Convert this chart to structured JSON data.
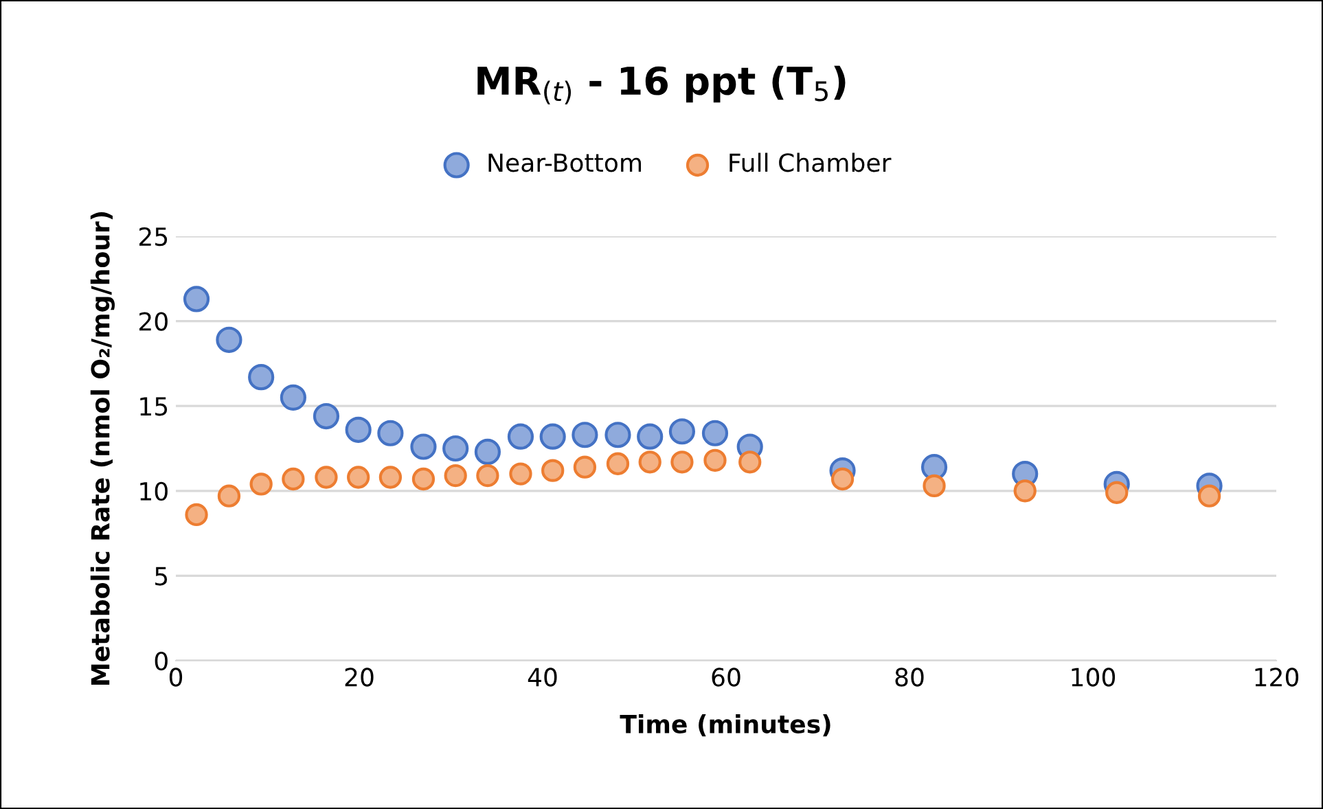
{
  "chart_data": {
    "type": "scatter",
    "title": "MR$_{(t)}$ - 16 ppt (T$_{5}$)",
    "xlabel": "Time (minutes)",
    "ylabel": "Metabolic Rate (nmol O₂/mg/hour)",
    "x": [
      2.25,
      5.8,
      9.3,
      12.8,
      16.4,
      19.9,
      23.4,
      27,
      30.5,
      34,
      37.6,
      41.1,
      44.6,
      48.2,
      51.7,
      55.2,
      58.8,
      62.6,
      72.7,
      82.7,
      92.6,
      102.6,
      112.7
    ],
    "series": [
      {
        "name": "Near-Bottom",
        "color": "#8faadc",
        "values": [
          21.3,
          18.9,
          16.7,
          15.5,
          14.4,
          13.6,
          13.4,
          12.6,
          12.5,
          12.3,
          13.2,
          13.2,
          13.3,
          13.3,
          13.2,
          13.5,
          13.4,
          12.6,
          11.2,
          11.4,
          11.0,
          10.4,
          10.3
        ]
      },
      {
        "name": "Full Chamber",
        "color": "#f4b183",
        "values": [
          8.6,
          9.7,
          10.4,
          10.7,
          10.8,
          10.8,
          10.8,
          10.7,
          10.9,
          10.9,
          11.0,
          11.2,
          11.4,
          11.6,
          11.7,
          11.7,
          11.8,
          11.7,
          10.7,
          10.3,
          10.0,
          9.9,
          9.7
        ]
      }
    ],
    "xlim": [
      0,
      120
    ],
    "xticks": [
      0,
      20,
      40,
      60,
      80,
      100,
      120
    ],
    "ylim": [
      0,
      25
    ],
    "yticks": [
      0,
      5,
      10,
      15,
      20,
      25
    ],
    "grid": "y",
    "legend": "top",
    "marker": "circle"
  }
}
